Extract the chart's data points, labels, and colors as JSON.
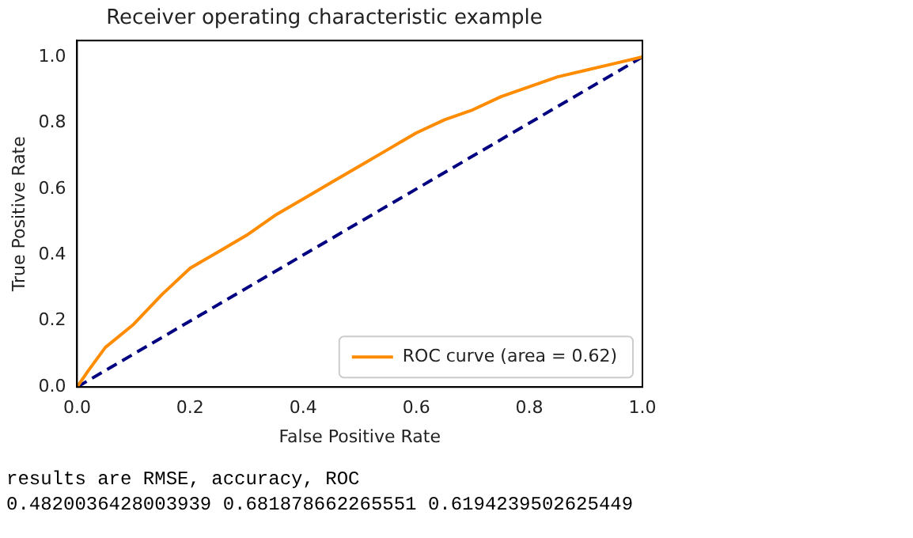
{
  "chart_data": {
    "type": "line",
    "title": "Receiver operating characteristic example",
    "xlabel": "False Positive Rate",
    "ylabel": "True Positive Rate",
    "xlim": [
      0,
      1
    ],
    "ylim": [
      0,
      1.05
    ],
    "xticks": [
      {
        "value": 0,
        "label": "0.0"
      },
      {
        "value": 0.2,
        "label": "0.2"
      },
      {
        "value": 0.4,
        "label": "0.4"
      },
      {
        "value": 0.6,
        "label": "0.6"
      },
      {
        "value": 0.8,
        "label": "0.8"
      },
      {
        "value": 1,
        "label": "1.0"
      }
    ],
    "yticks": [
      {
        "value": 0,
        "label": "0.0"
      },
      {
        "value": 0.2,
        "label": "0.2"
      },
      {
        "value": 0.4,
        "label": "0.4"
      },
      {
        "value": 0.6,
        "label": "0.6"
      },
      {
        "value": 0.8,
        "label": "0.8"
      },
      {
        "value": 1,
        "label": "1.0"
      }
    ],
    "grid": false,
    "legend": "bottom right",
    "marker": "none",
    "series": [
      {
        "name": "ROC curve (area = 0.62)",
        "color": "#ff8c00",
        "line_style": "solid",
        "x": [
          0,
          0.02,
          0.05,
          0.1,
          0.15,
          0.2,
          0.25,
          0.3,
          0.35,
          0.4,
          0.45,
          0.5,
          0.55,
          0.6,
          0.65,
          0.7,
          0.75,
          0.8,
          0.85,
          0.9,
          0.95,
          1
        ],
        "values": [
          0,
          0.05,
          0.12,
          0.19,
          0.28,
          0.36,
          0.41,
          0.46,
          0.52,
          0.57,
          0.62,
          0.67,
          0.72,
          0.77,
          0.81,
          0.84,
          0.88,
          0.91,
          0.94,
          0.96,
          0.98,
          1
        ]
      },
      {
        "color": "#000080",
        "line_style": "dashed",
        "x": [
          0,
          1
        ],
        "values": [
          0,
          1
        ]
      }
    ],
    "annotations": [
      "results are RMSE, accuracy, ROC",
      "0.4820036428003939 0.681878662265551 0.6194239502625449"
    ]
  }
}
